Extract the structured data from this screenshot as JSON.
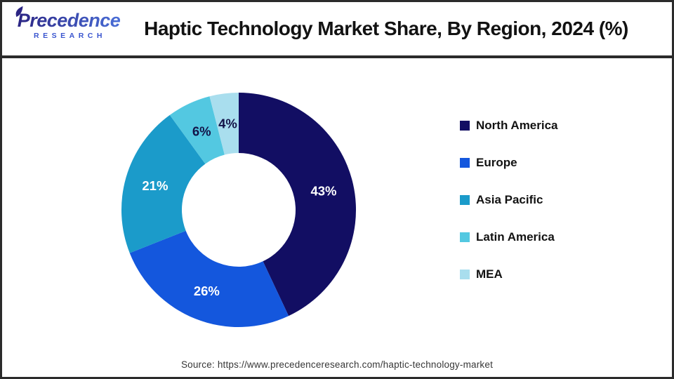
{
  "header": {
    "logo": {
      "line1": "Precedence",
      "line2": "RESEARCH",
      "colors": {
        "gradient_start": "#2b2483",
        "gradient_end": "#4a6fd8",
        "research_color": "#3a55cf"
      }
    },
    "title": "Haptic Technology Market Share, By Region, 2024 (%)"
  },
  "chart_data": {
    "type": "pie",
    "donut": true,
    "title": "Haptic Technology Market Share, By Region, 2024 (%)",
    "categories": [
      "North America",
      "Europe",
      "Asia Pacific",
      "Latin America",
      "MEA"
    ],
    "values": [
      43,
      26,
      21,
      6,
      4
    ],
    "labels": [
      "43%",
      "26%",
      "21%",
      "6%",
      "4%"
    ],
    "colors": [
      "#120e63",
      "#1457dd",
      "#1b9bca",
      "#53c8e1",
      "#a9deee"
    ],
    "label_colors": [
      "#ffffff",
      "#ffffff",
      "#ffffff",
      "#131347",
      "#131347"
    ],
    "start_angle_deg": 0,
    "direction": "clockwise",
    "legend_position": "right",
    "inner_radius_ratio": 0.485
  },
  "footer": {
    "source": "Source: https://www.precedenceresearch.com/haptic-technology-market"
  }
}
